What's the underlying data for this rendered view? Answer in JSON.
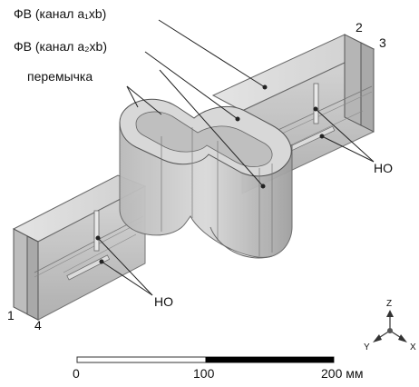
{
  "labels": {
    "fv1": "ФВ (канал a₁xb)",
    "fv2": "ФВ (канал a₂xb)",
    "bridge": "перемычка",
    "ho_right": "НО",
    "ho_left": "НО"
  },
  "ports": {
    "p1": "1",
    "p2": "2",
    "p3": "3",
    "p4": "4"
  },
  "axes": {
    "z": "Z",
    "y": "Y",
    "x": "X"
  },
  "scale": {
    "tick0": "0",
    "tick1": "100",
    "tick2": "200 мм",
    "max_value": 200,
    "filled_from": 100,
    "filled_to": 200
  },
  "colors": {
    "body_fill": "#c9c9c9",
    "edge": "#555555",
    "bar_fill": "#000000"
  }
}
